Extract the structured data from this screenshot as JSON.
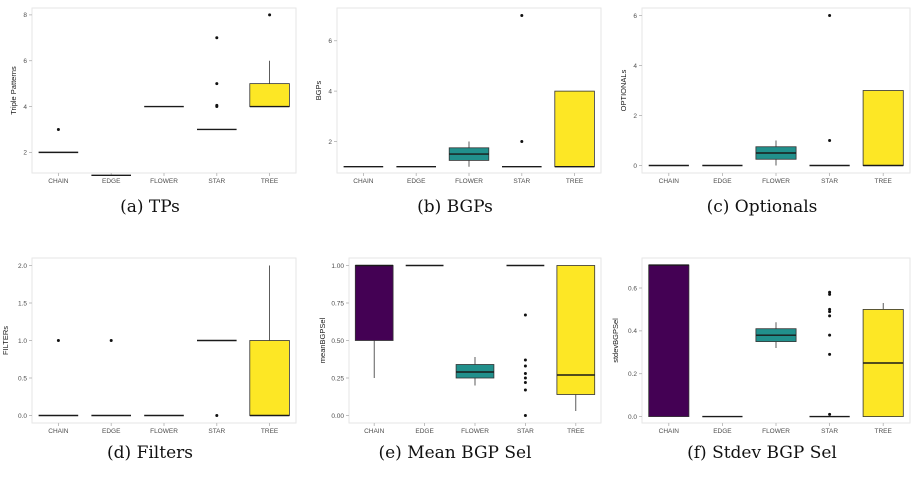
{
  "colors": {
    "purple": "#440154",
    "teal": "#21908C",
    "yellow": "#FDE725",
    "median": "#1a1a1a",
    "grid": "#e6e6e6",
    "axis": "#b0b0b0"
  },
  "captions": [
    "(a) TPs",
    "(b) BGPs",
    "(c) Optionals",
    "(d) Filters",
    "(e) Mean BGP Sel",
    "(f) Stdev BGP Sel"
  ],
  "chart_data": [
    {
      "type": "box",
      "caption": "(a) TPs",
      "ylabel": "Triple Patterns",
      "categories": [
        "CHAIN",
        "EDGE",
        "FLOWER",
        "STAR",
        "TREE"
      ],
      "ylim": [
        1.1,
        8.3
      ],
      "yticks": [
        2,
        4,
        6,
        8
      ],
      "ytick_labels": [
        "2",
        "4",
        "6",
        "8"
      ],
      "boxes": [
        {
          "q1": 2,
          "median": 2,
          "q3": 2,
          "whisker_low": 2,
          "whisker_high": 2,
          "outliers": [
            3
          ],
          "color": "purple"
        },
        {
          "q1": 1,
          "median": 1,
          "q3": 1,
          "whisker_low": 1,
          "whisker_high": 1,
          "outliers": [],
          "color": "purple"
        },
        {
          "q1": 4,
          "median": 4,
          "q3": 4,
          "whisker_low": 4,
          "whisker_high": 4,
          "outliers": [],
          "color": "teal"
        },
        {
          "q1": 3,
          "median": 3,
          "q3": 3,
          "whisker_low": 3,
          "whisker_high": 3,
          "outliers": [
            4,
            4.05,
            5,
            7
          ],
          "color": "teal"
        },
        {
          "q1": 4,
          "median": 4,
          "q3": 5,
          "whisker_low": 4,
          "whisker_high": 6,
          "outliers": [
            8
          ],
          "color": "yellow"
        }
      ]
    },
    {
      "type": "box",
      "caption": "(b) BGPs",
      "ylabel": "BGPs",
      "categories": [
        "CHAIN",
        "EDGE",
        "FLOWER",
        "STAR",
        "TREE"
      ],
      "ylim": [
        0.75,
        7.3
      ],
      "yticks": [
        2,
        4,
        6
      ],
      "ytick_labels": [
        "2",
        "4",
        "6"
      ],
      "boxes": [
        {
          "q1": 1,
          "median": 1,
          "q3": 1,
          "whisker_low": 1,
          "whisker_high": 1,
          "outliers": [],
          "color": "purple"
        },
        {
          "q1": 1,
          "median": 1,
          "q3": 1,
          "whisker_low": 1,
          "whisker_high": 1,
          "outliers": [],
          "color": "purple"
        },
        {
          "q1": 1.25,
          "median": 1.5,
          "q3": 1.75,
          "whisker_low": 1,
          "whisker_high": 2,
          "outliers": [],
          "color": "teal"
        },
        {
          "q1": 1,
          "median": 1,
          "q3": 1,
          "whisker_low": 1,
          "whisker_high": 1,
          "outliers": [
            2,
            7
          ],
          "color": "teal"
        },
        {
          "q1": 1,
          "median": 1,
          "q3": 4,
          "whisker_low": 1,
          "whisker_high": 4,
          "outliers": [],
          "color": "yellow"
        }
      ]
    },
    {
      "type": "box",
      "caption": "(c) Optionals",
      "ylabel": "OPTIONALs",
      "categories": [
        "CHAIN",
        "EDGE",
        "FLOWER",
        "STAR",
        "TREE"
      ],
      "ylim": [
        -0.3,
        6.3
      ],
      "yticks": [
        0,
        2,
        4,
        6
      ],
      "ytick_labels": [
        "0",
        "2",
        "4",
        "6"
      ],
      "boxes": [
        {
          "q1": 0,
          "median": 0,
          "q3": 0,
          "whisker_low": 0,
          "whisker_high": 0,
          "outliers": [],
          "color": "purple"
        },
        {
          "q1": 0,
          "median": 0,
          "q3": 0,
          "whisker_low": 0,
          "whisker_high": 0,
          "outliers": [],
          "color": "purple"
        },
        {
          "q1": 0.25,
          "median": 0.5,
          "q3": 0.75,
          "whisker_low": 0,
          "whisker_high": 1,
          "outliers": [],
          "color": "teal"
        },
        {
          "q1": 0,
          "median": 0,
          "q3": 0,
          "whisker_low": 0,
          "whisker_high": 0,
          "outliers": [
            1,
            6
          ],
          "color": "teal"
        },
        {
          "q1": 0,
          "median": 0,
          "q3": 3,
          "whisker_low": 0,
          "whisker_high": 3,
          "outliers": [],
          "color": "yellow"
        }
      ]
    },
    {
      "type": "box",
      "caption": "(d) Filters",
      "ylabel": "FILTERs",
      "categories": [
        "CHAIN",
        "EDGE",
        "FLOWER",
        "STAR",
        "TREE"
      ],
      "ylim": [
        -0.1,
        2.1
      ],
      "yticks": [
        0,
        0.5,
        1,
        1.5,
        2
      ],
      "ytick_labels": [
        "0.0",
        "0.5",
        "1.0",
        "1.5",
        "2.0"
      ],
      "boxes": [
        {
          "q1": 0,
          "median": 0,
          "q3": 0,
          "whisker_low": 0,
          "whisker_high": 0,
          "outliers": [
            1
          ],
          "color": "purple"
        },
        {
          "q1": 0,
          "median": 0,
          "q3": 0,
          "whisker_low": 0,
          "whisker_high": 0,
          "outliers": [
            1
          ],
          "color": "purple"
        },
        {
          "q1": 0,
          "median": 0,
          "q3": 0,
          "whisker_low": 0,
          "whisker_high": 0,
          "outliers": [],
          "color": "teal"
        },
        {
          "q1": 1,
          "median": 1,
          "q3": 1,
          "whisker_low": 1,
          "whisker_high": 1,
          "outliers": [
            0
          ],
          "color": "teal"
        },
        {
          "q1": 0,
          "median": 0,
          "q3": 1,
          "whisker_low": 0,
          "whisker_high": 2,
          "outliers": [],
          "color": "yellow"
        }
      ]
    },
    {
      "type": "box",
      "caption": "(e) Mean BGP Sel",
      "ylabel": "meanBGPSel",
      "categories": [
        "CHAIN",
        "EDGE",
        "FLOWER",
        "STAR",
        "TREE"
      ],
      "ylim": [
        -0.05,
        1.05
      ],
      "yticks": [
        0,
        0.25,
        0.5,
        0.75,
        1
      ],
      "ytick_labels": [
        "0.00",
        "0.25",
        "0.50",
        "0.75",
        "1.00"
      ],
      "boxes": [
        {
          "q1": 0.5,
          "median": 1,
          "q3": 1,
          "whisker_low": 0.25,
          "whisker_high": 1,
          "outliers": [],
          "color": "purple"
        },
        {
          "q1": 1,
          "median": 1,
          "q3": 1,
          "whisker_low": 1,
          "whisker_high": 1,
          "outliers": [],
          "color": "purple"
        },
        {
          "q1": 0.25,
          "median": 0.29,
          "q3": 0.34,
          "whisker_low": 0.2,
          "whisker_high": 0.39,
          "outliers": [],
          "color": "teal"
        },
        {
          "q1": 1,
          "median": 1,
          "q3": 1,
          "whisker_low": 1,
          "whisker_high": 1,
          "outliers": [
            0,
            0.17,
            0.22,
            0.25,
            0.28,
            0.33,
            0.37,
            0.67
          ],
          "color": "teal"
        },
        {
          "q1": 0.14,
          "median": 0.27,
          "q3": 1,
          "whisker_low": 0.03,
          "whisker_high": 1,
          "outliers": [],
          "color": "yellow"
        }
      ]
    },
    {
      "type": "box",
      "caption": "(f) Stdev BGP Sel",
      "ylabel": "stdevBGPSel",
      "categories": [
        "CHAIN",
        "EDGE",
        "FLOWER",
        "STAR",
        "TREE"
      ],
      "ylim": [
        -0.03,
        0.74
      ],
      "yticks": [
        0,
        0.2,
        0.4,
        0.6
      ],
      "ytick_labels": [
        "0.0",
        "0.2",
        "0.4",
        "0.6"
      ],
      "boxes": [
        {
          "q1": 0,
          "median": 0.707,
          "q3": 0.707,
          "whisker_low": 0,
          "whisker_high": 0.707,
          "outliers": [],
          "color": "purple"
        },
        {
          "q1": 0,
          "median": 0,
          "q3": 0,
          "whisker_low": 0,
          "whisker_high": 0,
          "outliers": [],
          "color": "purple"
        },
        {
          "q1": 0.35,
          "median": 0.38,
          "q3": 0.41,
          "whisker_low": 0.32,
          "whisker_high": 0.44,
          "outliers": [],
          "color": "teal"
        },
        {
          "q1": 0,
          "median": 0,
          "q3": 0,
          "whisker_low": 0,
          "whisker_high": 0,
          "outliers": [
            0.01,
            0.29,
            0.38,
            0.47,
            0.49,
            0.5,
            0.57,
            0.58
          ],
          "color": "teal"
        },
        {
          "q1": 0,
          "median": 0.25,
          "q3": 0.5,
          "whisker_low": 0,
          "whisker_high": 0.53,
          "outliers": [],
          "color": "yellow"
        }
      ]
    }
  ]
}
